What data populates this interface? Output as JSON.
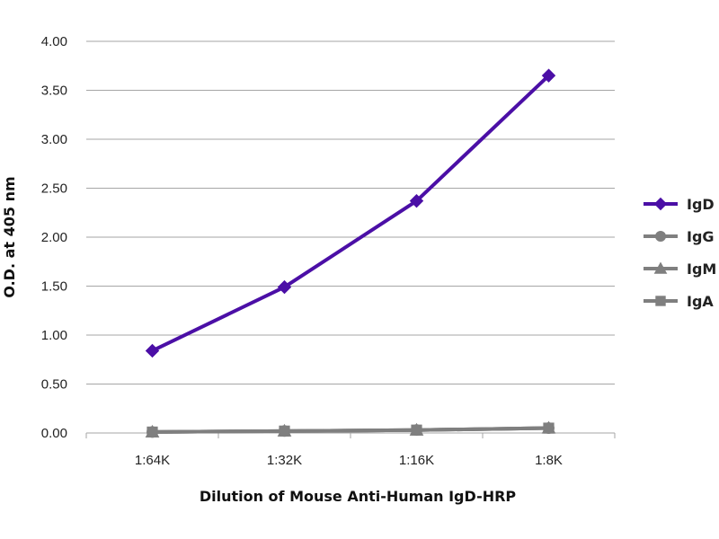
{
  "chart_data": {
    "type": "line",
    "title": "",
    "xlabel": "Dilution of Mouse Anti-Human IgD-HRP",
    "ylabel": "O.D. at 405 nm",
    "categories": [
      "1:64K",
      "1:32K",
      "1:16K",
      "1:8K"
    ],
    "ylim": [
      0,
      4
    ],
    "yticks": [
      "0.00",
      "0.50",
      "1.00",
      "1.50",
      "2.00",
      "2.50",
      "3.00",
      "3.50",
      "4.00"
    ],
    "grid": true,
    "legend_position": "right",
    "series": [
      {
        "name": "IgD",
        "values": [
          0.84,
          1.49,
          2.37,
          3.65
        ],
        "color": "#4b0fa6",
        "marker": "diamond"
      },
      {
        "name": "IgG",
        "values": [
          0.01,
          0.02,
          0.03,
          0.05
        ],
        "color": "#7f7f7f",
        "marker": "circle"
      },
      {
        "name": "IgM",
        "values": [
          0.01,
          0.02,
          0.03,
          0.05
        ],
        "color": "#7f7f7f",
        "marker": "triangle"
      },
      {
        "name": "IgA",
        "values": [
          0.01,
          0.02,
          0.03,
          0.05
        ],
        "color": "#7f7f7f",
        "marker": "square"
      }
    ]
  }
}
